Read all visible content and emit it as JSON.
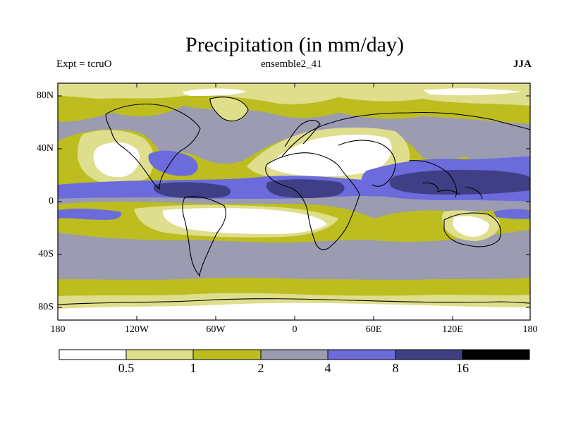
{
  "title": "Precipitation (in mm/day)",
  "experiment": "Expt = tcruO",
  "ensemble": "ensemble2_41",
  "season": "JJA",
  "lat_labels": [
    "80N",
    "40N",
    "0",
    "40S",
    "80S"
  ],
  "lon_labels": [
    "180",
    "120W",
    "60W",
    "0",
    "60E",
    "120E",
    "180"
  ],
  "colorbar": {
    "labels": [
      "0.5",
      "1",
      "2",
      "4",
      "8",
      "16"
    ],
    "colors": [
      "#ffffff",
      "#dede8c",
      "#bdbd1f",
      "#9b9bb2",
      "#6b6bdc",
      "#3f3f86",
      "#000000"
    ]
  },
  "colors": {
    "ocean_base": "#9b9bb2",
    "coastline": "#000000"
  }
}
